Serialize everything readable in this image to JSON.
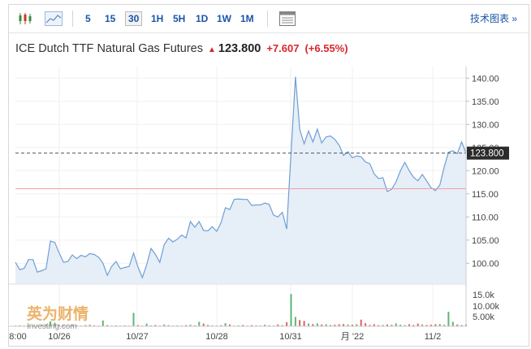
{
  "toolbar": {
    "intervals": [
      "5",
      "15",
      "30",
      "1H",
      "5H",
      "1D",
      "1W",
      "1M"
    ],
    "active_interval": "30",
    "tech_chart_label": "技术图表 »",
    "icons": [
      "candlestick-icon",
      "area-chart-icon",
      "table-icon"
    ]
  },
  "header": {
    "instrument": "ICE Dutch TTF Natural Gas Futures",
    "price": "123.800",
    "change": "+7.607",
    "change_pct": "(+6.55%)",
    "direction": "up"
  },
  "watermark": {
    "brand": "英为财情",
    "sub": "Investing.com"
  },
  "colors": {
    "line": "#6e9fd4",
    "area": "#e6eef8",
    "up": "#d9262c",
    "down": "#2a9d4a",
    "link": "#1a56a8",
    "ref_line": "#f1a0a0"
  },
  "chart_data": {
    "type": "area",
    "price_axis": {
      "ticks": [
        "140.00",
        "135.00",
        "130.00",
        "125.00",
        "120.00",
        "115.00",
        "110.00",
        "105.00",
        "100.00"
      ],
      "ylim": [
        95.5,
        142.5
      ]
    },
    "current_price_label": "123.800",
    "reference_level": 116.1,
    "x_labels": [
      "8:00",
      "10/26",
      "10/27",
      "10/28",
      "10/31",
      "月 '22",
      "11/2"
    ],
    "volume_axis": {
      "ticks": [
        "15.0k",
        "10.00k",
        "5.00k"
      ],
      "ylim": [
        0,
        17500
      ]
    },
    "prices": [
      100.2,
      98.6,
      98.9,
      100.8,
      100.8,
      98.1,
      98.4,
      98.8,
      104.8,
      104.5,
      102.2,
      100.2,
      100.4,
      101.8,
      101.0,
      101.7,
      101.4,
      102.1,
      101.9,
      101.3,
      100.0,
      97.4,
      99.3,
      100.4,
      98.8,
      99.1,
      99.3,
      102.2,
      99.2,
      96.9,
      99.7,
      103.2,
      101.9,
      100.2,
      104.0,
      105.4,
      104.6,
      105.2,
      106.1,
      105.5,
      109.0,
      107.8,
      109.0,
      107.1,
      107.0,
      107.9,
      106.9,
      108.8,
      112.0,
      111.6,
      113.8,
      113.9,
      113.8,
      113.8,
      112.5,
      112.6,
      112.6,
      113.0,
      112.7,
      110.4,
      110.0,
      111.0,
      107.4,
      124.0,
      140.3,
      128.9,
      125.8,
      128.6,
      126.2,
      129.0,
      126.0,
      127.3,
      127.5,
      126.8,
      125.5,
      123.3,
      124.1,
      122.8,
      123.2,
      123.0,
      121.9,
      121.5,
      119.3,
      118.3,
      118.5,
      115.5,
      116.0,
      117.6,
      120.0,
      121.8,
      120.0,
      118.6,
      117.8,
      119.2,
      117.8,
      116.3,
      115.7,
      116.9,
      120.8,
      124.0,
      124.3,
      123.7,
      126.2,
      123.8
    ],
    "volumes": [
      300,
      400,
      300,
      500,
      400,
      300,
      600,
      800,
      2200,
      1600,
      500,
      400,
      300,
      600,
      400,
      300,
      500,
      700,
      400,
      300,
      2600,
      500,
      300,
      400,
      300,
      400,
      300,
      6000,
      500,
      300,
      1200,
      400,
      600,
      300,
      800,
      500,
      300,
      400,
      300,
      500,
      700,
      400,
      2000,
      1200,
      600,
      400,
      300,
      500,
      1400,
      800,
      300,
      400,
      600,
      300,
      500,
      400,
      300,
      700,
      400,
      300,
      800,
      500,
      1800,
      14500,
      4200,
      2800,
      2400,
      1200,
      1000,
      1300,
      800,
      900,
      600,
      700,
      900,
      1000,
      800,
      700,
      900,
      3000,
      1400,
      600,
      900,
      500,
      600,
      800,
      700,
      1300,
      700,
      500,
      900,
      600,
      1200,
      800,
      600,
      700,
      900,
      1000,
      700,
      6500,
      2000,
      800,
      600,
      800
    ],
    "volume_directions": [
      1,
      1,
      0,
      1,
      0,
      0,
      1,
      1,
      1,
      1,
      0,
      0,
      1,
      1,
      0,
      1,
      0,
      1,
      0,
      0,
      1,
      0,
      1,
      1,
      0,
      1,
      1,
      1,
      0,
      0,
      1,
      1,
      0,
      0,
      1,
      1,
      0,
      1,
      1,
      0,
      1,
      0,
      1,
      0,
      0,
      1,
      0,
      1,
      1,
      0,
      1,
      1,
      0,
      0,
      0,
      1,
      0,
      1,
      0,
      0,
      0,
      1,
      0,
      1,
      1,
      0,
      0,
      1,
      0,
      1,
      0,
      1,
      1,
      0,
      0,
      0,
      1,
      0,
      1,
      0,
      0,
      0,
      0,
      0,
      1,
      0,
      1,
      1,
      1,
      1,
      0,
      0,
      0,
      1,
      0,
      0,
      0,
      1,
      1,
      1,
      1,
      0,
      1,
      0
    ]
  }
}
